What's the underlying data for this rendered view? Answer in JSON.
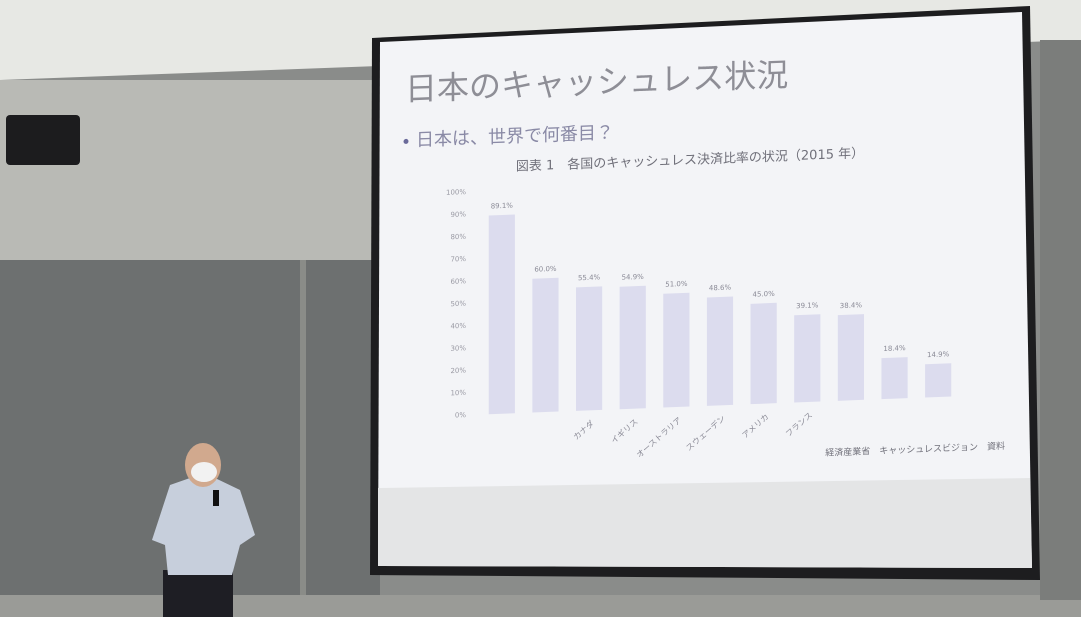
{
  "chart_data": {
    "type": "bar",
    "slide_title": "日本のキャッシュレス状況",
    "bullet": "日本は、世界で何番目？",
    "title": "図表 1　各国のキャッシュレス決済比率の状況（2015 年）",
    "source": "経済産業省　キャッシュレスビジョン　資料",
    "categories": [
      null,
      null,
      "カナダ",
      "イギリス",
      "オーストラリア",
      "スウェーデン",
      "アメリカ",
      "フランス",
      null,
      null,
      null
    ],
    "values": [
      89.1,
      60.0,
      55.4,
      54.9,
      51.0,
      48.6,
      45.0,
      39.1,
      38.4,
      18.4,
      14.9
    ],
    "value_labels": [
      "89.1%",
      "60.0%",
      "55.4%",
      "54.9%",
      "51.0%",
      "48.6%",
      "45.0%",
      "39.1%",
      "38.4%",
      "18.4%",
      "14.9%"
    ],
    "color": "#dcdcee",
    "ylim": [
      0,
      100
    ],
    "yticks": [
      {
        "value": 0,
        "label": "0%"
      },
      {
        "value": 10,
        "label": "10%"
      },
      {
        "value": 20,
        "label": "20%"
      },
      {
        "value": 30,
        "label": "30%"
      },
      {
        "value": 40,
        "label": "40%"
      },
      {
        "value": 50,
        "label": "50%"
      },
      {
        "value": 60,
        "label": "60%"
      },
      {
        "value": 70,
        "label": "70%"
      },
      {
        "value": 80,
        "label": "80%"
      },
      {
        "value": 90,
        "label": "90%"
      },
      {
        "value": 100,
        "label": "100%"
      }
    ],
    "grid": false
  }
}
